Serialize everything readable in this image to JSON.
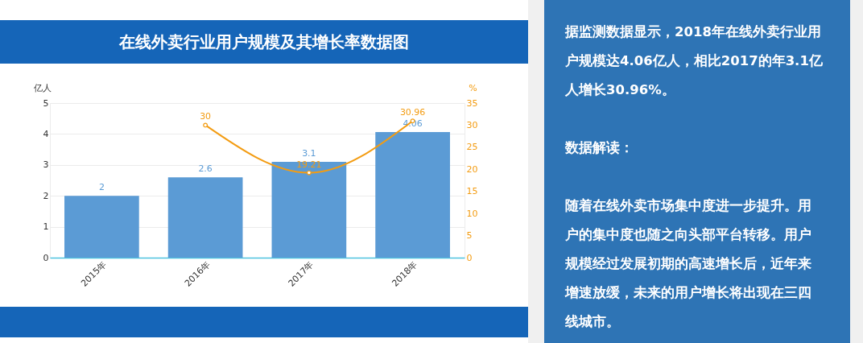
{
  "chart_data": [
    {
      "type": "bar",
      "title": "在线外卖行业用户规模及其增长率数据图",
      "categories": [
        "2015年",
        "2016年",
        "2017年",
        "2018年"
      ],
      "series": [
        {
          "type": "bar",
          "color": "#5b9bd5",
          "values": [
            2,
            2.6,
            3.1,
            4.06
          ]
        },
        {
          "type": "line",
          "axis": "y2",
          "color": "#f39c12",
          "values": [
            null,
            30,
            19.21,
            30.96
          ]
        }
      ],
      "ylabel": "亿人",
      "y2label": "%",
      "ylim": [
        0,
        5
      ],
      "yticks": [
        0,
        1,
        2,
        3,
        4,
        5
      ],
      "y2lim": [
        0,
        35
      ],
      "y2ticks": [
        0,
        5,
        10,
        15,
        20,
        25,
        30,
        35
      ],
      "grid": "y",
      "data_labels": true,
      "marker": "circle"
    },
    {
      "type": "other",
      "annotations": [
        "据监测数据显示，2018年在线外卖行业用户规模达4.06亿人，相比2017的年3.1亿人增长30.96%。",
        "数据解读：",
        "随着在线外卖市场集中度进一步提升。用户的集中度也随之向头部平台转移。用户规模经过发展初期的高速增长后，近年来增速放缓，未来的用户增长将出现在三四线城市。"
      ]
    }
  ]
}
